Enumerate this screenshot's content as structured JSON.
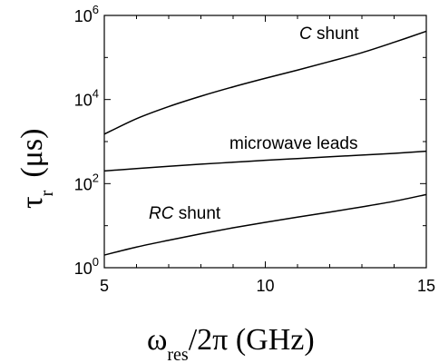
{
  "chart_data": {
    "type": "line",
    "x": [
      5,
      6,
      7,
      8,
      9,
      10,
      11,
      12,
      13,
      14,
      15
    ],
    "series": [
      {
        "name": "C shunt",
        "name_parts": [
          "C",
          " shunt"
        ],
        "values": [
          1500,
          3500,
          6800,
          12000,
          20000,
          32000,
          50000,
          80000,
          130000,
          230000,
          420000
        ]
      },
      {
        "name": "microwave leads",
        "name_parts": [
          "",
          "microwave leads"
        ],
        "values": [
          200,
          228,
          258,
          290,
          322,
          358,
          395,
          435,
          478,
          525,
          590
        ]
      },
      {
        "name": "RC shunt",
        "name_parts": [
          "RC",
          " shunt"
        ],
        "values": [
          2,
          3.1,
          4.5,
          6.4,
          8.9,
          12,
          16,
          21,
          28,
          38,
          55
        ]
      }
    ],
    "xticks": [
      "5",
      "10",
      "15"
    ],
    "xtick_values": [
      5,
      10,
      15
    ],
    "xlim": [
      5,
      15
    ],
    "ylim": [
      1,
      1000000
    ],
    "yscale": "log",
    "ytick_values": [
      1,
      100,
      10000,
      1000000
    ],
    "ytick_bases": [
      "10",
      "10",
      "10",
      "10"
    ],
    "ytick_exponents": [
      "0",
      "2",
      "4",
      "6"
    ],
    "xlabel": {
      "main": "ω",
      "sub": "res",
      "rest": "/2π   (GHz)"
    },
    "ylabel": {
      "main": "τ",
      "sub": "r",
      "rest": "(μs)"
    },
    "grid": false,
    "legend": "none"
  }
}
